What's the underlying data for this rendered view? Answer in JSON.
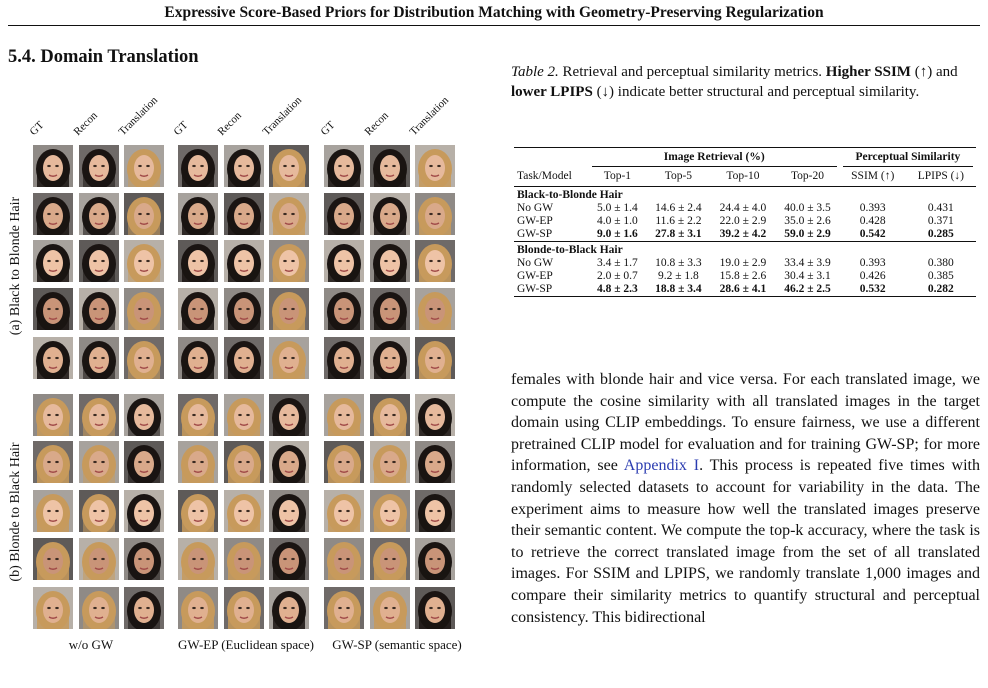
{
  "running_head": "Expressive Score-Based Priors for Distribution Matching with Geometry-Preserving Regularization",
  "section_title": "5.4. Domain Translation",
  "figure": {
    "row_labels": [
      "(a) Black to Blonde Hair",
      "(b) Blonde to Black Hair"
    ],
    "column_headers": [
      "GT",
      "Recon",
      "Translation"
    ],
    "group_captions": [
      "w/o GW",
      "GW-EP (Euclidean space)",
      "GW-SP (semantic space)"
    ],
    "hair_colors": {
      "black": "#1a1412",
      "blonde": "#c79a5c",
      "skin": "#e2b497",
      "bg": "#8f8a86"
    }
  },
  "table_caption": {
    "label": "Table 2.",
    "text_1": " Retrieval and perceptual similarity metrics. ",
    "bold_1": "Higher SSIM",
    "text_2": " (↑) and ",
    "bold_2": "lower LPIPS",
    "text_3": " (↓) indicate better structural and perceptual similarity."
  },
  "table": {
    "group_headers": {
      "retrieval": "Image Retrieval (%)",
      "perceptual": "Perceptual Similarity"
    },
    "columns": [
      "Task/Model",
      "Top-1",
      "Top-5",
      "Top-10",
      "Top-20",
      "SSIM (↑)",
      "LPIPS (↓)"
    ],
    "sections": [
      {
        "title": "Black-to-Blonde Hair",
        "rows": [
          {
            "model": "No GW",
            "cells": [
              "5.0 ± 1.4",
              "14.6 ± 2.4",
              "24.4 ± 4.0",
              "40.0 ± 3.5",
              "0.393",
              "0.431"
            ],
            "bold": false
          },
          {
            "model": "GW-EP",
            "cells": [
              "4.0 ± 1.0",
              "11.6 ± 2.2",
              "22.0 ± 2.9",
              "35.0 ± 2.6",
              "0.428",
              "0.371"
            ],
            "bold": false
          },
          {
            "model": "GW-SP",
            "cells": [
              "9.0 ± 1.6",
              "27.8 ± 3.1",
              "39.2 ± 4.2",
              "59.0 ± 2.9",
              "0.542",
              "0.285"
            ],
            "bold": true
          }
        ]
      },
      {
        "title": "Blonde-to-Black Hair",
        "rows": [
          {
            "model": "No GW",
            "cells": [
              "3.4 ± 1.7",
              "10.8 ± 3.3",
              "19.0 ± 2.9",
              "33.4 ± 3.9",
              "0.393",
              "0.380"
            ],
            "bold": false
          },
          {
            "model": "GW-EP",
            "cells": [
              "2.0 ± 0.7",
              "9.2 ± 1.8",
              "15.8 ± 2.6",
              "30.4 ± 3.1",
              "0.426",
              "0.385"
            ],
            "bold": false
          },
          {
            "model": "GW-SP",
            "cells": [
              "4.8 ± 2.3",
              "18.8 ± 3.4",
              "28.6 ± 4.1",
              "46.2 ± 2.5",
              "0.532",
              "0.282"
            ],
            "bold": true
          }
        ]
      }
    ]
  },
  "body": {
    "text_before_link": "females with blonde hair and vice versa. For each translated image, we compute the cosine similarity with all translated images in the target domain using CLIP embeddings. To ensure fairness, we use a different pretrained CLIP model for evaluation and for training GW-SP; for more information, see ",
    "link": "Appendix I",
    "text_after_link": ". This process is repeated five times with randomly selected datasets to account for variability in the data. The experiment aims to measure how well the translated images preserve their semantic content. We compute the top-k accuracy, where the task is to retrieve the correct translated image from the set of all translated images. For SSIM and LPIPS, we randomly translate 1,000 images and compare their similarity metrics to quantify structural and perceptual consistency. This bidirectional"
  }
}
